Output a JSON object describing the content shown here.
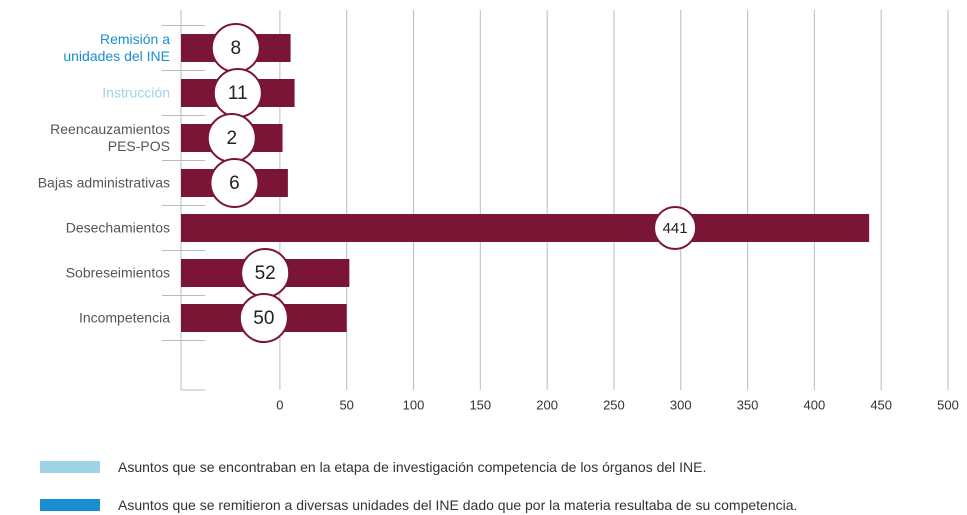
{
  "chart_data": {
    "type": "hbar",
    "categories": [
      "Remisión a\nunidades del INE",
      "Instrucción",
      "Reencauzamientos\nPES-POS",
      "Bajas administrativas",
      "Desechamientos",
      "Sobreseimientos",
      "Incompetencia"
    ],
    "category_colors": [
      "#1a8fd0",
      "#9dd4e6",
      "#555555",
      "#555555",
      "#555555",
      "#555555",
      "#555555"
    ],
    "values": [
      8,
      11,
      2,
      6,
      441,
      52,
      50
    ],
    "color": "#7b1535",
    "xlim": [
      -74,
      500
    ],
    "xticks": [
      0,
      50,
      100,
      150,
      200,
      250,
      300,
      350,
      400,
      450,
      500
    ],
    "grid": true,
    "legend": [
      {
        "label": "Asuntos que se encontraban en la etapa de investigación competencia de los órganos del INE.",
        "color": "#9dd4e6"
      },
      {
        "label": "Asuntos que se remitieron a diversas unidades del INE dado que por la materia resultaba de su competencia.",
        "color": "#1a8fd0"
      }
    ]
  }
}
